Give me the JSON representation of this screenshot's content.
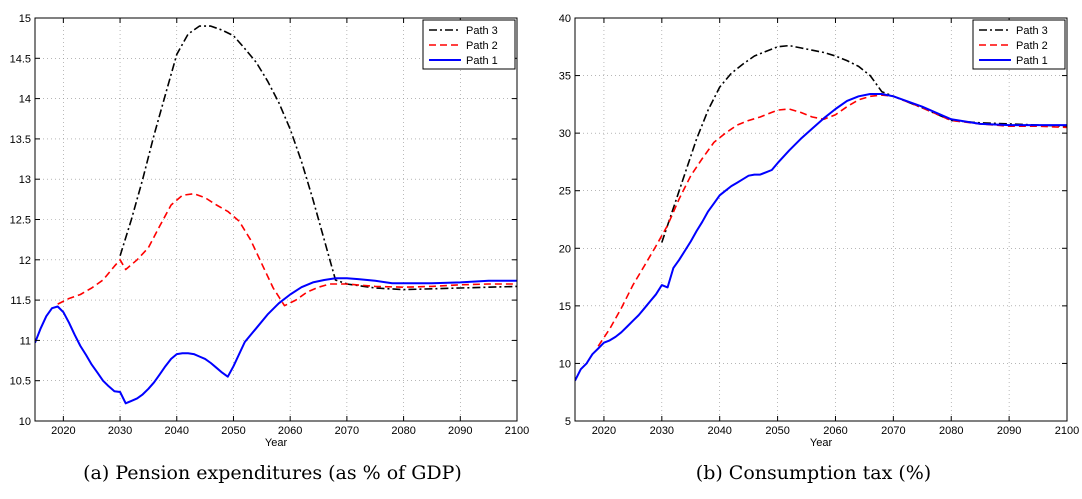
{
  "captions": {
    "a": "(a) Pension expenditures (as % of GDP)",
    "b": "(b) Consumption tax (%)"
  },
  "legend_order": [
    "Path 3",
    "Path 2",
    "Path 1"
  ],
  "series_styles": {
    "Path 3": {
      "color": "#000000",
      "dash": "dashdot"
    },
    "Path 2": {
      "color": "#ff0000",
      "dash": "dashed"
    },
    "Path 1": {
      "color": "#0000ff",
      "dash": "solid"
    }
  },
  "chart_data": [
    {
      "type": "line",
      "xlabel": "Year",
      "ylabel": "",
      "xlim": [
        2015,
        2100
      ],
      "ylim": [
        10,
        15
      ],
      "xticks": [
        2020,
        2030,
        2040,
        2050,
        2060,
        2070,
        2080,
        2090,
        2100
      ],
      "yticks": [
        10,
        10.5,
        11,
        11.5,
        12,
        12.5,
        13,
        13.5,
        14,
        14.5,
        15
      ],
      "ytick_labels": [
        "10",
        "10.5",
        "11",
        "11.5",
        "12",
        "12.5",
        "13",
        "13.5",
        "14",
        "14.5",
        "15"
      ],
      "grid": true,
      "legend_position": "top-right",
      "series": [
        {
          "name": "Path 3",
          "x": [
            2030,
            2032,
            2034,
            2036,
            2038,
            2040,
            2042,
            2044,
            2046,
            2048,
            2050,
            2052,
            2054,
            2056,
            2058,
            2060,
            2062,
            2064,
            2066,
            2068,
            2070,
            2075,
            2080,
            2085,
            2090,
            2095,
            2100
          ],
          "y": [
            12.05,
            12.5,
            13.0,
            13.55,
            14.05,
            14.55,
            14.8,
            14.9,
            14.9,
            14.85,
            14.78,
            14.62,
            14.45,
            14.22,
            13.95,
            13.62,
            13.22,
            12.75,
            12.25,
            11.75,
            11.7,
            11.65,
            11.63,
            11.64,
            11.65,
            11.66,
            11.67
          ]
        },
        {
          "name": "Path 2",
          "x": [
            2019,
            2021,
            2023,
            2025,
            2027,
            2029,
            2030,
            2031,
            2033,
            2035,
            2037,
            2039,
            2041,
            2043,
            2045,
            2047,
            2049,
            2051,
            2053,
            2055,
            2057,
            2059,
            2061,
            2063,
            2065,
            2067,
            2070,
            2075,
            2080,
            2085,
            2090,
            2095,
            2100
          ],
          "y": [
            11.45,
            11.52,
            11.57,
            11.65,
            11.75,
            11.92,
            12.0,
            11.88,
            12.0,
            12.15,
            12.42,
            12.68,
            12.8,
            12.82,
            12.77,
            12.68,
            12.6,
            12.48,
            12.25,
            11.95,
            11.65,
            11.43,
            11.5,
            11.6,
            11.66,
            11.7,
            11.7,
            11.67,
            11.66,
            11.67,
            11.69,
            11.7,
            11.7
          ]
        },
        {
          "name": "Path 1",
          "x": [
            2015,
            2016,
            2017,
            2018,
            2019,
            2020,
            2021,
            2022,
            2023,
            2024,
            2025,
            2026,
            2027,
            2028,
            2029,
            2030,
            2031,
            2032,
            2033,
            2034,
            2035,
            2036,
            2037,
            2038,
            2039,
            2040,
            2041,
            2042,
            2043,
            2044,
            2045,
            2046,
            2047,
            2048,
            2049,
            2050,
            2052,
            2054,
            2056,
            2058,
            2060,
            2062,
            2064,
            2066,
            2068,
            2070,
            2072,
            2075,
            2078,
            2080,
            2085,
            2090,
            2095,
            2100
          ],
          "y": [
            10.97,
            11.15,
            11.3,
            11.4,
            11.42,
            11.35,
            11.22,
            11.07,
            10.93,
            10.82,
            10.7,
            10.6,
            10.5,
            10.43,
            10.37,
            10.36,
            10.22,
            10.25,
            10.28,
            10.33,
            10.4,
            10.48,
            10.58,
            10.68,
            10.77,
            10.83,
            10.84,
            10.84,
            10.83,
            10.8,
            10.77,
            10.72,
            10.66,
            10.6,
            10.55,
            10.68,
            10.98,
            11.15,
            11.32,
            11.46,
            11.57,
            11.66,
            11.72,
            11.75,
            11.77,
            11.77,
            11.76,
            11.74,
            11.71,
            11.71,
            11.71,
            11.72,
            11.74,
            11.74
          ]
        }
      ]
    },
    {
      "type": "line",
      "xlabel": "Year",
      "ylabel": "",
      "xlim": [
        2015,
        2100
      ],
      "ylim": [
        5,
        40
      ],
      "xticks": [
        2020,
        2030,
        2040,
        2050,
        2060,
        2070,
        2080,
        2090,
        2100
      ],
      "yticks": [
        5,
        10,
        15,
        20,
        25,
        30,
        35,
        40
      ],
      "ytick_labels": [
        "5",
        "10",
        "15",
        "20",
        "25",
        "30",
        "35",
        "40"
      ],
      "grid": true,
      "legend_position": "top-right",
      "series": [
        {
          "name": "Path 3",
          "x": [
            2030,
            2032,
            2034,
            2036,
            2038,
            2040,
            2042,
            2044,
            2046,
            2048,
            2050,
            2052,
            2054,
            2056,
            2058,
            2060,
            2062,
            2064,
            2066,
            2068,
            2070,
            2075,
            2080,
            2085,
            2090,
            2095,
            2100
          ],
          "y": [
            20.5,
            23.5,
            26.5,
            29.5,
            32.0,
            34.0,
            35.2,
            36.0,
            36.7,
            37.1,
            37.5,
            37.6,
            37.4,
            37.2,
            37.0,
            36.7,
            36.3,
            35.8,
            35.0,
            33.6,
            33.2,
            32.2,
            31.1,
            30.9,
            30.8,
            30.7,
            30.6
          ]
        },
        {
          "name": "Path 2",
          "x": [
            2019,
            2021,
            2023,
            2025,
            2027,
            2029,
            2031,
            2033,
            2035,
            2037,
            2039,
            2041,
            2043,
            2045,
            2047,
            2049,
            2050,
            2052,
            2054,
            2056,
            2058,
            2060,
            2062,
            2064,
            2066,
            2068,
            2070,
            2075,
            2080,
            2085,
            2090,
            2095,
            2100
          ],
          "y": [
            11.5,
            13.0,
            14.8,
            16.8,
            18.5,
            20.2,
            22.0,
            24.3,
            26.3,
            27.8,
            29.2,
            30.0,
            30.7,
            31.1,
            31.4,
            31.8,
            32.0,
            32.1,
            31.8,
            31.4,
            31.2,
            31.6,
            32.3,
            32.9,
            33.2,
            33.3,
            33.2,
            32.2,
            31.1,
            30.8,
            30.6,
            30.6,
            30.5
          ]
        },
        {
          "name": "Path 1",
          "x": [
            2015,
            2016,
            2017,
            2018,
            2019,
            2020,
            2021,
            2022,
            2023,
            2024,
            2025,
            2026,
            2027,
            2028,
            2029,
            2030,
            2031,
            2032,
            2033,
            2034,
            2035,
            2036,
            2037,
            2038,
            2039,
            2040,
            2041,
            2042,
            2043,
            2044,
            2045,
            2046,
            2047,
            2048,
            2049,
            2050,
            2052,
            2054,
            2056,
            2058,
            2060,
            2062,
            2064,
            2066,
            2068,
            2070,
            2075,
            2080,
            2085,
            2090,
            2095,
            2100
          ],
          "y": [
            8.5,
            9.5,
            10.0,
            10.8,
            11.3,
            11.8,
            12.0,
            12.3,
            12.7,
            13.2,
            13.7,
            14.2,
            14.8,
            15.4,
            16.0,
            16.8,
            16.6,
            18.3,
            19.0,
            19.8,
            20.6,
            21.5,
            22.3,
            23.2,
            23.9,
            24.6,
            25.0,
            25.4,
            25.7,
            26.0,
            26.3,
            26.4,
            26.4,
            26.6,
            26.8,
            27.4,
            28.5,
            29.5,
            30.4,
            31.3,
            32.1,
            32.8,
            33.2,
            33.4,
            33.4,
            33.2,
            32.3,
            31.2,
            30.8,
            30.7,
            30.7,
            30.7
          ]
        }
      ]
    }
  ]
}
